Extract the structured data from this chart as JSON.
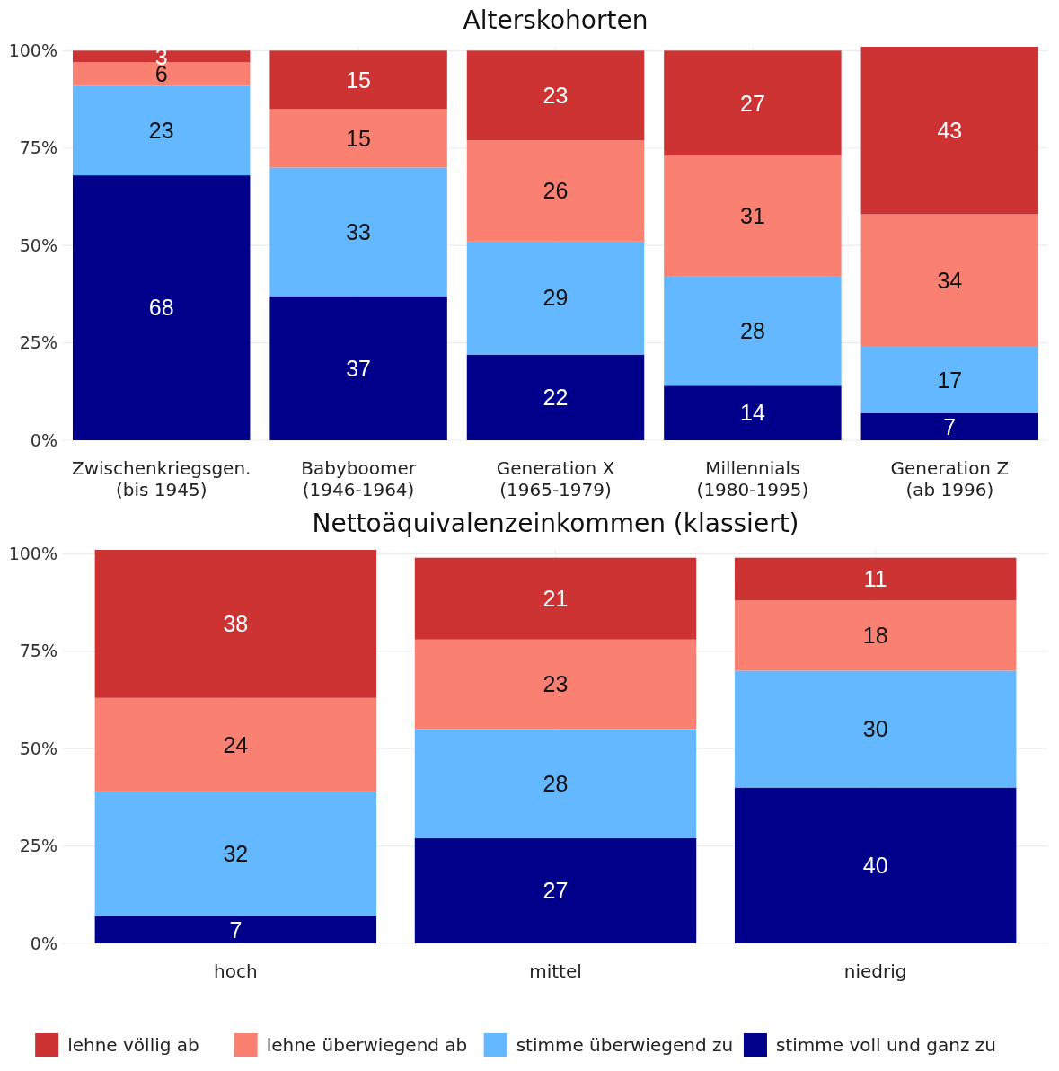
{
  "chart_data": [
    {
      "type": "bar",
      "stacked": true,
      "title": "Alterskohorten",
      "categories": [
        "Zwischenkriegsgen.\n(bis 1945)",
        "Babyboomer\n(1946-1964)",
        "Generation X\n(1965-1979)",
        "Millennials\n(1980-1995)",
        "Generation Z\n(ab 1996)"
      ],
      "series": [
        {
          "color": "#00008b",
          "values": [
            68,
            37,
            22,
            14,
            7
          ]
        },
        {
          "color": "#63b8ff",
          "values": [
            23,
            33,
            29,
            28,
            17
          ]
        },
        {
          "color": "#fa8072",
          "values": [
            6,
            15,
            26,
            31,
            34
          ]
        },
        {
          "color": "#cd3333",
          "values": [
            3,
            15,
            23,
            27,
            43
          ]
        }
      ],
      "ylim": [
        0,
        101
      ],
      "yticks": [
        {
          "value": 0,
          "label": "0%"
        },
        {
          "value": 25,
          "label": "25%"
        },
        {
          "value": 50,
          "label": "50%"
        },
        {
          "value": 75,
          "label": "75%"
        },
        {
          "value": 100,
          "label": "100%"
        }
      ],
      "grid": true,
      "data_labels": true,
      "legend": false
    },
    {
      "type": "bar",
      "stacked": true,
      "title": "Nettoäquivalenzeinkommen (klassiert)",
      "categories": [
        "hoch",
        "mittel",
        "niedrig"
      ],
      "series": [
        {
          "name": "stimme voll und ganz zu",
          "color": "#00008b",
          "values": [
            7,
            27,
            40
          ]
        },
        {
          "name": "stimme überwiegend zu",
          "color": "#63b8ff",
          "values": [
            32,
            28,
            30
          ]
        },
        {
          "name": "lehne überwiegend ab",
          "color": "#fa8072",
          "values": [
            24,
            23,
            18
          ]
        },
        {
          "name": "lehne völlig ab",
          "color": "#cd3333",
          "values": [
            38,
            21,
            11
          ]
        }
      ],
      "ylim": [
        0,
        101
      ],
      "yticks": [
        {
          "value": 0,
          "label": "0%"
        },
        {
          "value": 25,
          "label": "25%"
        },
        {
          "value": 50,
          "label": "50%"
        },
        {
          "value": 75,
          "label": "75%"
        },
        {
          "value": 100,
          "label": "100%"
        }
      ],
      "grid": true,
      "data_labels": true,
      "legend": "bottom"
    }
  ]
}
